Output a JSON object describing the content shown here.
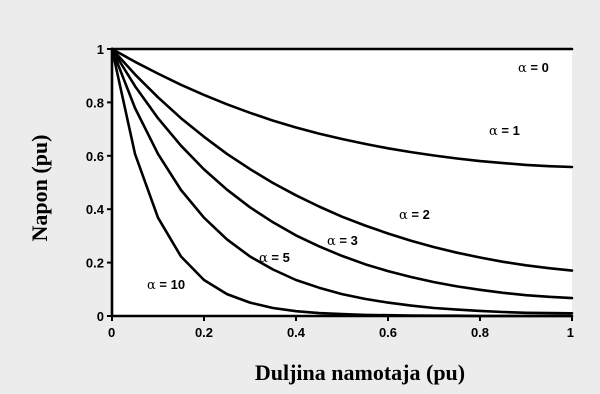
{
  "figure": {
    "background_color": "#ececec",
    "plot_background_color": "#ffffff",
    "line_color": "#000000"
  },
  "chart_data": {
    "type": "line",
    "title": "",
    "xlabel": "Duljina namotaja (pu)",
    "ylabel": "Napon (pu)",
    "xlim": [
      0,
      1
    ],
    "ylim": [
      0,
      1
    ],
    "x_ticks": [
      "0",
      "0.2",
      "0.4",
      "0.6",
      "0.8",
      "1"
    ],
    "y_ticks": [
      "0",
      "0.2",
      "0.4",
      "0.6",
      "0.8",
      "1"
    ],
    "grid": false,
    "legend": "none",
    "x": [
      0,
      0.05,
      0.1,
      0.15,
      0.2,
      0.25,
      0.3,
      0.35,
      0.4,
      0.45,
      0.5,
      0.55,
      0.6,
      0.65,
      0.7,
      0.75,
      0.8,
      0.85,
      0.9,
      0.95,
      1
    ],
    "series": [
      {
        "label": "α = 0",
        "values": [
          1,
          1,
          1,
          1,
          1,
          1,
          1,
          1,
          1,
          1,
          1,
          1,
          1,
          1,
          1,
          1,
          1,
          1,
          1,
          1,
          1
        ]
      },
      {
        "label": "α = 1",
        "values": [
          1,
          0.952,
          0.908,
          0.866,
          0.828,
          0.793,
          0.761,
          0.732,
          0.706,
          0.683,
          0.663,
          0.6445,
          0.628,
          0.614,
          0.601,
          0.59,
          0.58,
          0.5725,
          0.566,
          0.561,
          0.558
        ]
      },
      {
        "label": "α = 2",
        "values": [
          1,
          0.905,
          0.819,
          0.741,
          0.671,
          0.607,
          0.55,
          0.498,
          0.452,
          0.41,
          0.372,
          0.339,
          0.309,
          0.282,
          0.258,
          0.237,
          0.219,
          0.203,
          0.19,
          0.179,
          0.17
        ]
      },
      {
        "label": "α = 3",
        "values": [
          1,
          0.861,
          0.741,
          0.638,
          0.549,
          0.473,
          0.407,
          0.351,
          0.302,
          0.261,
          0.225,
          0.194,
          0.168,
          0.146,
          0.127,
          0.111,
          0.098,
          0.087,
          0.078,
          0.072,
          0.067
        ]
      },
      {
        "label": "α = 5",
        "values": [
          1,
          0.779,
          0.607,
          0.472,
          0.368,
          0.287,
          0.223,
          0.174,
          0.135,
          0.106,
          0.082,
          0.064,
          0.05,
          0.039,
          0.03,
          0.024,
          0.019,
          0.015,
          0.012,
          0.011,
          0.01
        ]
      },
      {
        "label": "α = 10",
        "values": [
          1,
          0.607,
          0.368,
          0.223,
          0.135,
          0.082,
          0.05,
          0.03,
          0.018,
          0.011,
          0.007,
          0.004,
          0.003,
          0.002,
          0.001,
          0.001,
          0,
          0,
          0,
          0,
          0
        ]
      }
    ]
  }
}
